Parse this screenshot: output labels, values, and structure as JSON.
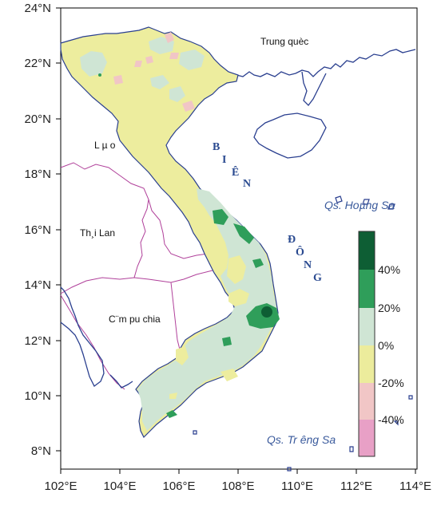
{
  "map": {
    "x_ticks": [
      "102°E",
      "104°E",
      "106°E",
      "108°E",
      "110°E",
      "112°E",
      "114°E"
    ],
    "y_ticks": [
      "24°N",
      "22°N",
      "20°N",
      "18°N",
      "16°N",
      "14°N",
      "12°N",
      "10°N",
      "8°N"
    ],
    "places": {
      "china": "Trung quèc",
      "laos": "L µ o",
      "thailand": "Th¸i Lan",
      "cambodia": "C¨m pu chia",
      "hoang_sa": "Qs. Hoµng Sa",
      "truong_sa": "Qs. Tr­ êng Sa",
      "bien_dong": [
        "B",
        "I",
        "Ê",
        "N",
        "Đ",
        "Ô",
        "N",
        "G"
      ]
    },
    "legend": {
      "labels": [
        "40%",
        "20%",
        "0%",
        "-20%",
        "-40%"
      ],
      "colors": [
        "#0e5e34",
        "#2f9e5a",
        "#cfe5d4",
        "#ecec9c",
        "#f1c6c6",
        "#e8a0c6"
      ]
    },
    "colors": {
      "coast": "#2a3f8f",
      "border": "#b0409a",
      "yellow": "#eded9e",
      "light_green": "#cfe5d4",
      "mid_green": "#2f9e5a",
      "dark_green": "#0e5e34",
      "pink": "#f1c6c6"
    }
  }
}
